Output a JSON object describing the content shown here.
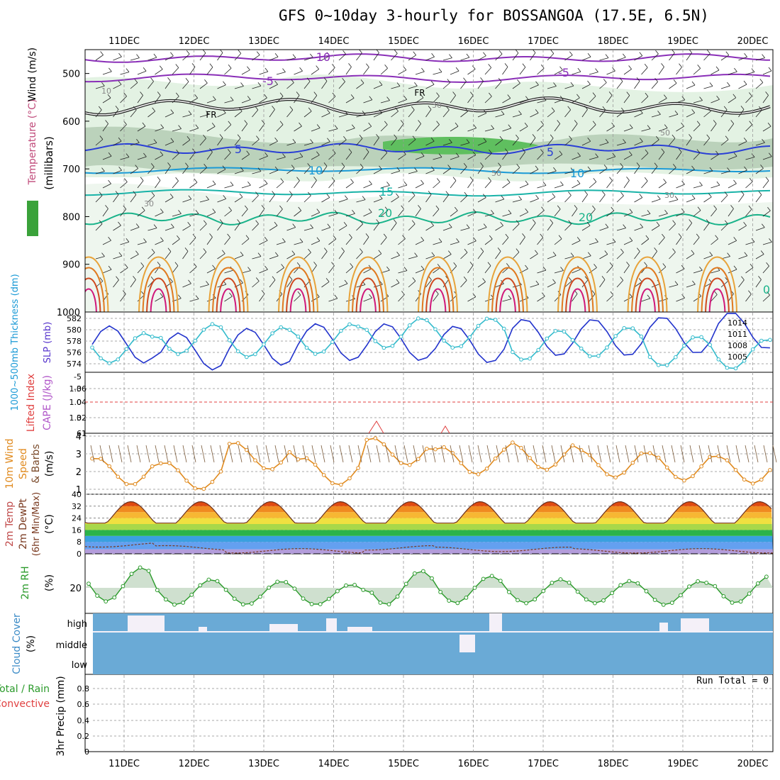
{
  "title": "GFS 0~10day 3-hourly for BOSSANGOA (17.5E, 6.5N)",
  "dates": [
    "11DEC",
    "12DEC",
    "13DEC",
    "14DEC",
    "15DEC",
    "16DEC",
    "17DEC",
    "18DEC",
    "19DEC",
    "20DEC"
  ],
  "panels": {
    "upper": {
      "ylabel_units": "(millibars)",
      "ylabel_wind": "Wind (m/s)",
      "ylabel_temp": "Temperature (°C)",
      "ylabel_rh": "RH (%)",
      "yticks": [
        500,
        600,
        700,
        800,
        900,
        1000
      ],
      "contour_labels": {
        "minus10": "-10",
        "minus5": "-5",
        "fr": "FR",
        "five": "5",
        "ten": "10",
        "fifteen": "15",
        "twenty": "20",
        "rh30": "30",
        "rh50": "50",
        "rh10": "10",
        "zero": "0"
      }
    },
    "slp": {
      "ylabel_left": "1000~500mb Thickness (dm)",
      "ylabel_right": "SLP (mb)",
      "left_ticks": [
        "582",
        "580",
        "578",
        "576",
        "574"
      ],
      "right_ticks": [
        "1014",
        "1011",
        "1008",
        "1005"
      ]
    },
    "cape": {
      "ylabel_left": "Lifted Index",
      "ylabel_right": "CAPE (J/kg)",
      "left_ticks": [
        "-5",
        "-3",
        "0",
        "3",
        "6"
      ],
      "right_ticks": [
        "1.06",
        "1.04",
        "1.02",
        "1"
      ]
    },
    "wind10": {
      "ylabel1": "10m Wind",
      "ylabel2": "Speed",
      "ylabel3": "& Barbs",
      "units": "(m/s)",
      "yticks": [
        "4",
        "3",
        "2",
        "1"
      ]
    },
    "temp2m": {
      "ylabel1": "2m Temp",
      "ylabel2": "2m DewPt",
      "ylabel3": "(6hr Min/Max)",
      "units": "(°C)",
      "yticks": [
        "40",
        "32",
        "24",
        "16",
        "8",
        "0"
      ]
    },
    "rh2m": {
      "ylabel": "2m RH",
      "units": "(%)",
      "yticks": [
        "20"
      ]
    },
    "cloud": {
      "ylabel": "Cloud Cover",
      "units": "(%)",
      "levels": [
        "high",
        "middle",
        "low"
      ]
    },
    "precip": {
      "ylabel1": "Total / Rain",
      "ylabel2": "Convective",
      "ylabel3": "3hr Precip (mm)",
      "yticks": [
        "0.8",
        "0.6",
        "0.4",
        "0.2",
        "0"
      ],
      "run_total": "Run Total = 0"
    }
  },
  "colors": {
    "slp": "#2233cc",
    "thickness": "#33bbcc",
    "wind": "#e08a1e",
    "rh": "#2a9a2a",
    "cloud": "#6aaad6",
    "temp_warm": "#d83a10",
    "dew": "#7a3a20"
  },
  "chart_data": [
    {
      "type": "line",
      "title": "1000~500mb Thickness / SLP",
      "x": [
        "11DEC",
        "12DEC",
        "13DEC",
        "14DEC",
        "15DEC",
        "16DEC",
        "17DEC",
        "18DEC",
        "19DEC",
        "20DEC"
      ],
      "series": [
        {
          "name": "SLP (mb)",
          "values": [
            1009.0,
            1007.5,
            1008.5,
            1009.5,
            1009.5,
            1009.0,
            1010.5,
            1010.5,
            1011.0,
            1012.0
          ]
        },
        {
          "name": "1000~500mb Thickness (dm)",
          "values": [
            577.0,
            578.5,
            578.0,
            578.5,
            579.5,
            579.5,
            577.5,
            578.0,
            576.5,
            576.0
          ]
        }
      ]
    },
    {
      "type": "line",
      "title": "10m Wind Speed",
      "x": [
        "11DEC",
        "12DEC",
        "13DEC",
        "14DEC",
        "15DEC",
        "16DEC",
        "17DEC",
        "18DEC",
        "19DEC",
        "20DEC"
      ],
      "series": [
        {
          "name": "Speed (m/s)",
          "values": [
            1.5,
            1.2,
            2.5,
            1.5,
            2.8,
            2.2,
            2.5,
            2.0,
            1.8,
            1.6
          ]
        }
      ],
      "ylim": [
        0,
        4
      ]
    },
    {
      "type": "area",
      "title": "2m Temp (6hr Min/Max)",
      "x": [
        "11DEC",
        "12DEC",
        "13DEC",
        "14DEC",
        "15DEC",
        "16DEC",
        "17DEC",
        "18DEC",
        "19DEC",
        "20DEC"
      ],
      "series": [
        {
          "name": "2m Temp max (°C)",
          "values": [
            35,
            35,
            35,
            35,
            35,
            35,
            35,
            34,
            34,
            34
          ]
        },
        {
          "name": "2m Temp min (°C)",
          "values": [
            22,
            20,
            20,
            20,
            20,
            20,
            20,
            20,
            20,
            20
          ]
        },
        {
          "name": "2m DewPt (°C)",
          "values": [
            6,
            4,
            2,
            2,
            4,
            3,
            3,
            2,
            2,
            2
          ]
        }
      ],
      "ylim": [
        0,
        40
      ]
    },
    {
      "type": "area",
      "title": "2m RH",
      "x": [
        "11DEC",
        "12DEC",
        "13DEC",
        "14DEC",
        "15DEC",
        "16DEC",
        "17DEC",
        "18DEC",
        "19DEC",
        "20DEC"
      ],
      "series": [
        {
          "name": "2m RH max (%)",
          "values": [
            32,
            25,
            24,
            22,
            30,
            27,
            25,
            24,
            24,
            27
          ]
        },
        {
          "name": "2m RH min (%)",
          "values": [
            12,
            10,
            10,
            10,
            10,
            11,
            11,
            11,
            10,
            11
          ]
        }
      ]
    },
    {
      "type": "bar",
      "title": "3hr Precip",
      "x": [
        "11DEC",
        "12DEC",
        "13DEC",
        "14DEC",
        "15DEC",
        "16DEC",
        "17DEC",
        "18DEC",
        "19DEC",
        "20DEC"
      ],
      "series": [
        {
          "name": "3hr Precip (mm)",
          "values": [
            0,
            0,
            0,
            0,
            0,
            0,
            0,
            0,
            0,
            0
          ]
        }
      ],
      "ylim": [
        0,
        0.9
      ]
    }
  ]
}
